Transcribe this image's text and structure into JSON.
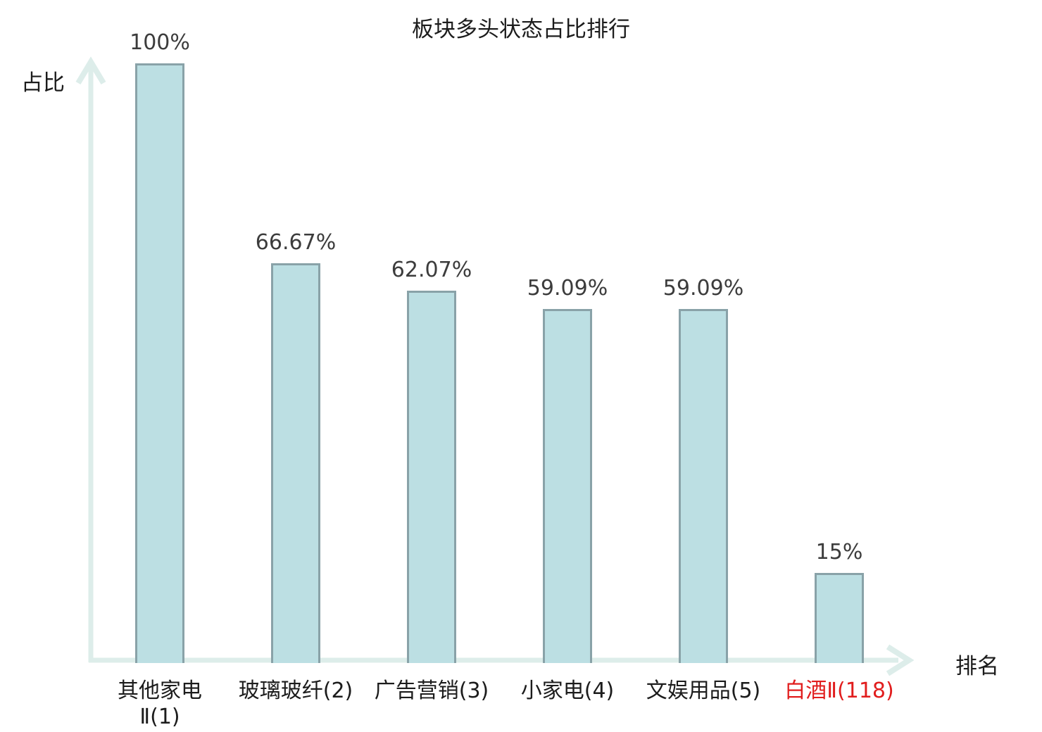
{
  "title": "板块多头状态占比排行",
  "axes": {
    "y_label": "占比",
    "x_label": "排名"
  },
  "colors": {
    "bar_fill": "#bcdfe3",
    "bar_border": "#89a2a8",
    "axis": "#ddedea",
    "value_text": "#3c3c3c",
    "label_text": "#1c1c1c",
    "highlight_text": "#e11d1d"
  },
  "chart_data": {
    "type": "bar",
    "title": "板块多头状态占比排行",
    "xlabel": "排名",
    "ylabel": "占比",
    "ylim": [
      0,
      100
    ],
    "grid": false,
    "legend": false,
    "categories": [
      "其他家电Ⅱ(1)",
      "玻璃玻纤(2)",
      "广告营销(3)",
      "小家电(4)",
      "文娱用品(5)",
      "白酒Ⅱ(118)"
    ],
    "values": [
      100,
      66.67,
      62.07,
      59.09,
      59.09,
      15
    ],
    "bars": [
      {
        "category_lines": [
          "其他家电",
          "Ⅱ(1)"
        ],
        "value": 100,
        "value_label": "100%",
        "highlight": false
      },
      {
        "category_lines": [
          "玻璃玻纤(2)"
        ],
        "value": 66.67,
        "value_label": "66.67%",
        "highlight": false
      },
      {
        "category_lines": [
          "广告营销(3)"
        ],
        "value": 62.07,
        "value_label": "62.07%",
        "highlight": false
      },
      {
        "category_lines": [
          "小家电(4)"
        ],
        "value": 59.09,
        "value_label": "59.09%",
        "highlight": false
      },
      {
        "category_lines": [
          "文娱用品(5)"
        ],
        "value": 59.09,
        "value_label": "59.09%",
        "highlight": false
      },
      {
        "category_lines": [
          "白酒Ⅱ(118)"
        ],
        "value": 15,
        "value_label": "15%",
        "highlight": true
      }
    ]
  }
}
